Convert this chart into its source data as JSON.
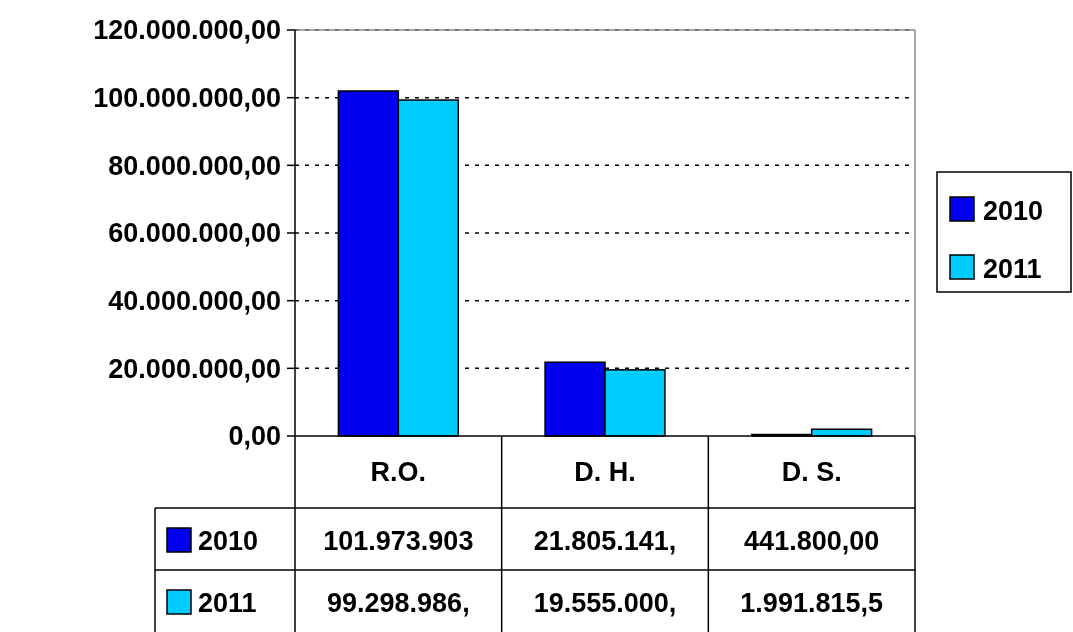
{
  "chart_data": {
    "type": "bar",
    "categories": [
      "R.O.",
      "D. H.",
      "D. S."
    ],
    "series": [
      {
        "name": "2010",
        "color": "#0000ee",
        "values": [
          101973903,
          21805141,
          441800
        ],
        "value_labels": [
          "101.973.903",
          "21.805.141,",
          "441.800,00"
        ]
      },
      {
        "name": "2011",
        "color": "#00ccff",
        "values": [
          99298986,
          19555000,
          1991815.5
        ],
        "value_labels": [
          "99.298.986,",
          "19.555.000,",
          "1.991.815,5"
        ]
      }
    ],
    "ylim": [
      0,
      120000000
    ],
    "yticks": [
      {
        "value": 0,
        "label": "0,00"
      },
      {
        "value": 20000000,
        "label": "20.000.000,00"
      },
      {
        "value": 40000000,
        "label": "40.000.000,00"
      },
      {
        "value": 60000000,
        "label": "60.000.000,00"
      },
      {
        "value": 80000000,
        "label": "80.000.000,00"
      },
      {
        "value": 100000000,
        "label": "100.000.000,00"
      },
      {
        "value": 120000000,
        "label": "120.000.000,00"
      }
    ],
    "grid": "y",
    "legend": "right"
  }
}
